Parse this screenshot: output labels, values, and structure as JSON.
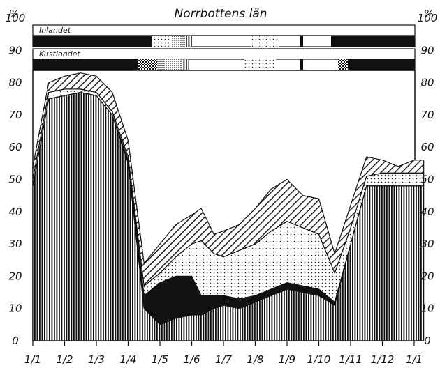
{
  "chart_data": {
    "type": "area",
    "title": "Norrbottens län",
    "y_unit": "%",
    "ylim": [
      0,
      100
    ],
    "y_ticks": [
      "0",
      "10",
      "20",
      "30",
      "40",
      "50",
      "60",
      "70",
      "80",
      "90",
      "100"
    ],
    "month_labels": [
      "1/1",
      "1/2",
      "1/3",
      "1/4",
      "1/5",
      "1/6",
      "1/7",
      "1/8",
      "1/9",
      "1/10",
      "1/11",
      "1/12",
      "1/1"
    ],
    "grid": false,
    "x": [
      0,
      0.5,
      1,
      1.5,
      2,
      2.5,
      3,
      3.5,
      4,
      4.5,
      5,
      5.3,
      5.7,
      6,
      6.5,
      7,
      7.5,
      8,
      8.5,
      9,
      9.5,
      10,
      10.5,
      11,
      11.5,
      12,
      12.3
    ],
    "series": [
      {
        "pattern": "vertical-lines",
        "values": [
          48,
          75,
          76,
          77,
          76,
          70,
          55,
          10,
          5,
          7,
          8,
          8,
          10,
          11,
          10,
          12,
          14,
          16,
          15,
          14,
          11,
          30,
          48,
          48,
          48,
          48,
          48
        ]
      },
      {
        "pattern": "solid-black",
        "values": [
          0,
          0,
          0,
          0,
          0,
          0,
          1,
          4,
          13,
          13,
          12,
          6,
          4,
          3,
          3,
          2,
          2,
          2,
          2,
          2,
          1,
          0,
          0,
          0,
          0,
          0,
          0
        ]
      },
      {
        "pattern": "fine-dots",
        "values": [
          2,
          2,
          2,
          1,
          1,
          1,
          1,
          3,
          3,
          6,
          10,
          17,
          13,
          12,
          15,
          16,
          18,
          19,
          18,
          17,
          9,
          5,
          3,
          4,
          4,
          4,
          4
        ]
      },
      {
        "pattern": "diagonal-hatch",
        "values": [
          4,
          3,
          4,
          5,
          5,
          6,
          5,
          7,
          9,
          10,
          9,
          10,
          6,
          8,
          8,
          11,
          13,
          13,
          10,
          11,
          6,
          7,
          6,
          4,
          2,
          4,
          4
        ]
      }
    ],
    "bands": [
      {
        "label": "Inlandet"
      },
      {
        "label": "Kustlandet"
      }
    ]
  }
}
